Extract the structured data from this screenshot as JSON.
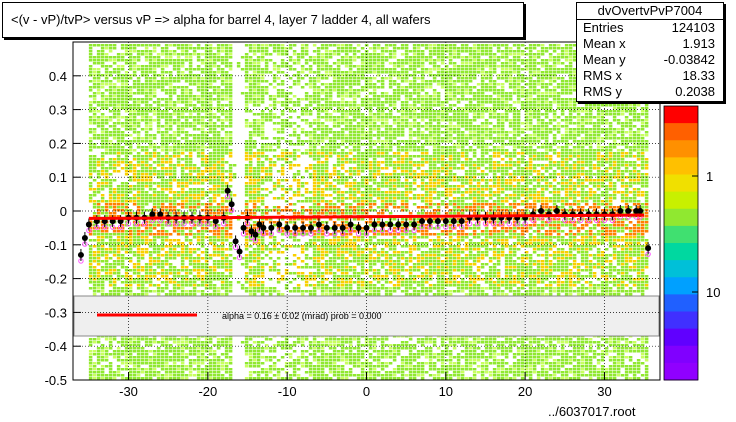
{
  "title": "<(v - vP)/tvP> versus   vP => alpha for barrel 4, layer 7 ladder 4, all wafers",
  "stats": {
    "name": "dvOvertvPvP7004",
    "rows": [
      {
        "label": "Entries",
        "value": "124103"
      },
      {
        "label": "Mean x",
        "value": "1.913"
      },
      {
        "label": "Mean y",
        "value": "-0.03842"
      },
      {
        "label": "RMS x",
        "value": "18.33"
      },
      {
        "label": "RMS y",
        "value": "0.2038"
      }
    ]
  },
  "fit_legend": "alpha =    0.16 ±  0.02 (mrad) prob = 0.000",
  "filename": "../6037017.root",
  "colors": {
    "fit_line": "#ff0000",
    "profile_points": "#000000",
    "legend_fill": "#efefef",
    "bins_main": "#90e830",
    "bins_dense": "#f8d000",
    "bins_peak": "#ff8000",
    "bins_sparse": "#c8ff60"
  },
  "chart_data": {
    "type": "heatmap",
    "xlim": [
      -37,
      37
    ],
    "ylim": [
      -0.5,
      0.5
    ],
    "x_ticks": [
      -30,
      -20,
      -10,
      0,
      10,
      20,
      30
    ],
    "y_ticks": [
      -0.5,
      -0.4,
      -0.3,
      -0.2,
      -0.1,
      0,
      0.1,
      0.2,
      0.3,
      0.4
    ],
    "y_tick_labels": [
      "-0.5",
      "-0.4",
      "-0.3",
      "-0.2",
      "-0.1",
      "0",
      "0.1",
      "0.2",
      "0.3",
      "0.4"
    ],
    "x_tick_labels": [
      "-30",
      "-20",
      "-10",
      "0",
      "10",
      "20",
      "30"
    ],
    "z_scale": "log",
    "z_tick_labels": [
      "1",
      "10"
    ],
    "grid": true,
    "fit_line": {
      "x": [
        -35,
        35
      ],
      "y": [
        -0.022,
        -0.012
      ]
    },
    "profile": {
      "x": [
        -36,
        -35.5,
        -35,
        -34,
        -33,
        -32,
        -31,
        -30,
        -29,
        -28,
        -27,
        -26,
        -25,
        -24,
        -23,
        -22,
        -21,
        -20,
        -19,
        -18,
        -17.5,
        -17,
        -16.5,
        -16,
        -15.5,
        -15,
        -14.5,
        -14,
        -13.5,
        -13,
        -12,
        -11,
        -10,
        -9,
        -8,
        -7,
        -6,
        -5,
        -4,
        -3,
        -2,
        -1,
        0,
        1,
        2,
        3,
        4,
        5,
        6,
        7,
        8,
        9,
        10,
        11,
        12,
        13,
        14,
        15,
        16,
        17,
        18,
        19,
        20,
        21,
        22,
        23,
        24,
        25,
        26,
        27,
        28,
        29,
        30,
        31,
        32,
        33,
        34,
        34.5,
        35.5
      ],
      "y": [
        -0.13,
        -0.08,
        -0.04,
        -0.03,
        -0.03,
        -0.03,
        -0.03,
        -0.02,
        -0.02,
        -0.02,
        -0.01,
        -0.01,
        -0.02,
        -0.02,
        -0.02,
        -0.02,
        -0.02,
        -0.02,
        -0.03,
        -0.02,
        0.06,
        0.02,
        -0.09,
        -0.12,
        -0.05,
        -0.02,
        -0.06,
        -0.07,
        -0.04,
        -0.05,
        -0.05,
        -0.04,
        -0.05,
        -0.05,
        -0.05,
        -0.05,
        -0.04,
        -0.05,
        -0.05,
        -0.05,
        -0.04,
        -0.05,
        -0.05,
        -0.04,
        -0.04,
        -0.04,
        -0.04,
        -0.04,
        -0.04,
        -0.03,
        -0.03,
        -0.03,
        -0.03,
        -0.03,
        -0.03,
        -0.02,
        -0.02,
        -0.02,
        -0.02,
        -0.02,
        -0.02,
        -0.02,
        -0.02,
        -0.01,
        0,
        -0.01,
        0,
        -0.01,
        -0.01,
        -0.01,
        -0.01,
        -0.01,
        -0.01,
        -0.01,
        0,
        0,
        0,
        0,
        -0.11
      ]
    }
  }
}
